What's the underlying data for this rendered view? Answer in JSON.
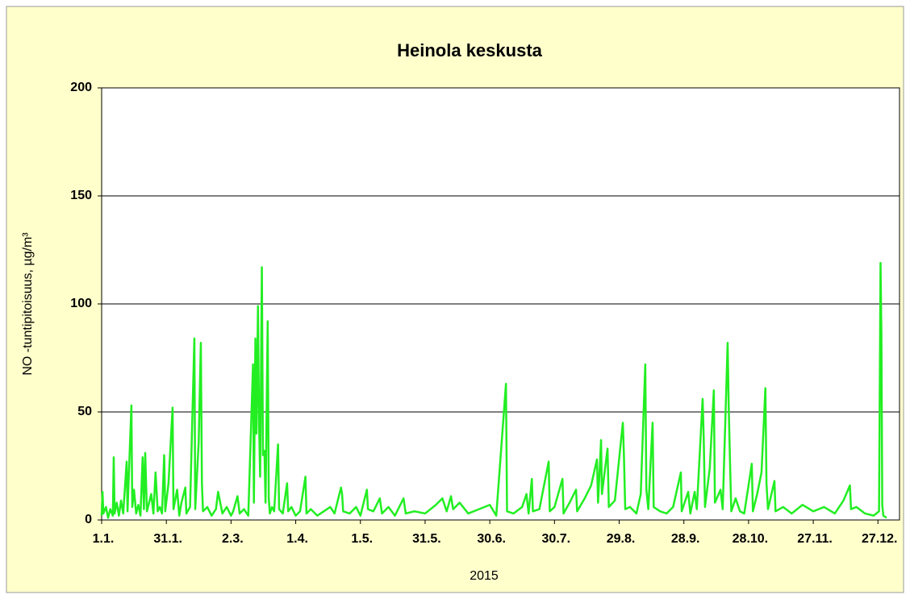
{
  "chart_data": {
    "type": "line",
    "title": "Heinola keskusta",
    "y_label": "NO -tuntipitoisuus, µg/m³",
    "x_label": "2015",
    "color": "#22ee22",
    "grid": true,
    "xlim": [
      0,
      370
    ],
    "ylim": [
      0,
      200
    ],
    "yticks": [
      0,
      50,
      100,
      150,
      200
    ],
    "xticks": [
      {
        "value": 0,
        "label": "1.1."
      },
      {
        "value": 30,
        "label": "31.1."
      },
      {
        "value": 60,
        "label": "2.3."
      },
      {
        "value": 90,
        "label": "1.4."
      },
      {
        "value": 120,
        "label": "1.5."
      },
      {
        "value": 150,
        "label": "31.5."
      },
      {
        "value": 180,
        "label": "30.6."
      },
      {
        "value": 210,
        "label": "30.7."
      },
      {
        "value": 240,
        "label": "29.8."
      },
      {
        "value": 270,
        "label": "28.9."
      },
      {
        "value": 300,
        "label": "28.10."
      },
      {
        "value": 330,
        "label": "27.11."
      },
      {
        "value": 360,
        "label": "27.12."
      }
    ],
    "x": [
      0,
      0.4,
      0.8,
      2,
      3,
      4,
      5.2,
      5.6,
      6,
      7,
      8,
      9,
      10,
      11.6,
      12,
      13.8,
      14.2,
      15,
      16,
      17,
      18,
      19,
      19.6,
      20.2,
      21,
      22,
      23,
      24,
      25,
      26,
      27,
      28,
      29,
      29.5,
      31,
      32.9,
      33.3,
      35,
      36,
      37,
      38.8,
      39.3,
      41,
      43,
      43.4,
      45,
      46,
      46.5,
      47,
      49,
      51,
      53,
      54,
      55,
      56,
      58,
      60,
      61,
      63,
      64,
      66,
      68,
      70.2,
      70.6,
      71.3,
      71.8,
      72.5,
      73,
      73.5,
      74.3,
      74.8,
      75.5,
      76,
      77,
      77.5,
      78,
      79,
      80,
      81.8,
      82.3,
      84,
      86,
      86.5,
      88,
      90,
      92,
      94.5,
      95,
      97,
      100,
      103,
      106,
      108,
      111,
      111.5,
      112,
      115,
      118,
      120,
      123,
      123.5,
      126,
      129,
      130,
      133,
      136,
      140,
      141,
      145,
      150,
      155,
      158,
      160,
      162,
      163,
      166,
      170,
      175,
      180,
      183,
      187.5,
      188,
      191,
      195,
      197,
      198,
      199.5,
      200,
      203,
      207.3,
      207.8,
      210,
      213.7,
      214.2,
      217,
      220,
      220.5,
      224,
      227,
      229.7,
      230.2,
      231.6,
      232,
      234.6,
      235.2,
      238,
      241.7,
      242.2,
      242.8,
      245,
      248,
      250,
      252.1,
      252.6,
      253.5,
      255.5,
      256,
      259,
      262,
      265,
      268.6,
      269,
      272,
      273,
      275,
      276,
      278.7,
      279.2,
      279.8,
      282,
      283.9,
      284.4,
      287,
      288,
      290.3,
      290.8,
      291.5,
      292,
      294,
      296,
      298,
      301.5,
      302,
      304,
      306,
      307.8,
      308.3,
      309,
      312,
      312.5,
      316,
      320,
      325,
      330,
      335,
      340,
      344,
      347,
      347.5,
      350,
      354,
      358,
      360.5,
      361.2,
      361.6,
      362,
      362.5,
      364
    ],
    "values": [
      2,
      13,
      3,
      6,
      1,
      5,
      2,
      29,
      3,
      8,
      2,
      9,
      3,
      27,
      4,
      53,
      6,
      14,
      3,
      7,
      2,
      29,
      5,
      31,
      4,
      8,
      12,
      3,
      22,
      4,
      6,
      3,
      30,
      4,
      17,
      52,
      5,
      14,
      2,
      8,
      15,
      3,
      6,
      84,
      5,
      36,
      82,
      17,
      4,
      6,
      2,
      5,
      13,
      8,
      3,
      6,
      2,
      4,
      11,
      3,
      5,
      2,
      72,
      8,
      84,
      40,
      99,
      44,
      20,
      117,
      30,
      32,
      8,
      92,
      10,
      3,
      6,
      4,
      35,
      5,
      3,
      17,
      4,
      6,
      2,
      4,
      20,
      3,
      5,
      2,
      4,
      6,
      3,
      15,
      12,
      4,
      3,
      6,
      2,
      14,
      5,
      4,
      10,
      3,
      6,
      2,
      10,
      3,
      4,
      3,
      7,
      10,
      4,
      11,
      5,
      8,
      3,
      5,
      7,
      2,
      63,
      4,
      3,
      6,
      12,
      3,
      19,
      4,
      5,
      27,
      4,
      6,
      19,
      3,
      8,
      14,
      4,
      10,
      16,
      28,
      8,
      37,
      12,
      33,
      6,
      9,
      45,
      30,
      5,
      6,
      3,
      12,
      72,
      14,
      5,
      45,
      6,
      4,
      3,
      6,
      22,
      4,
      13,
      3,
      13,
      5,
      56,
      38,
      6,
      24,
      60,
      8,
      14,
      5,
      82,
      52,
      23,
      4,
      10,
      4,
      3,
      26,
      4,
      12,
      22,
      61,
      17,
      5,
      18,
      4,
      6,
      3,
      7,
      4,
      6,
      3,
      9,
      16,
      5,
      6,
      3,
      2,
      4,
      119,
      86,
      7,
      2,
      1
    ]
  }
}
